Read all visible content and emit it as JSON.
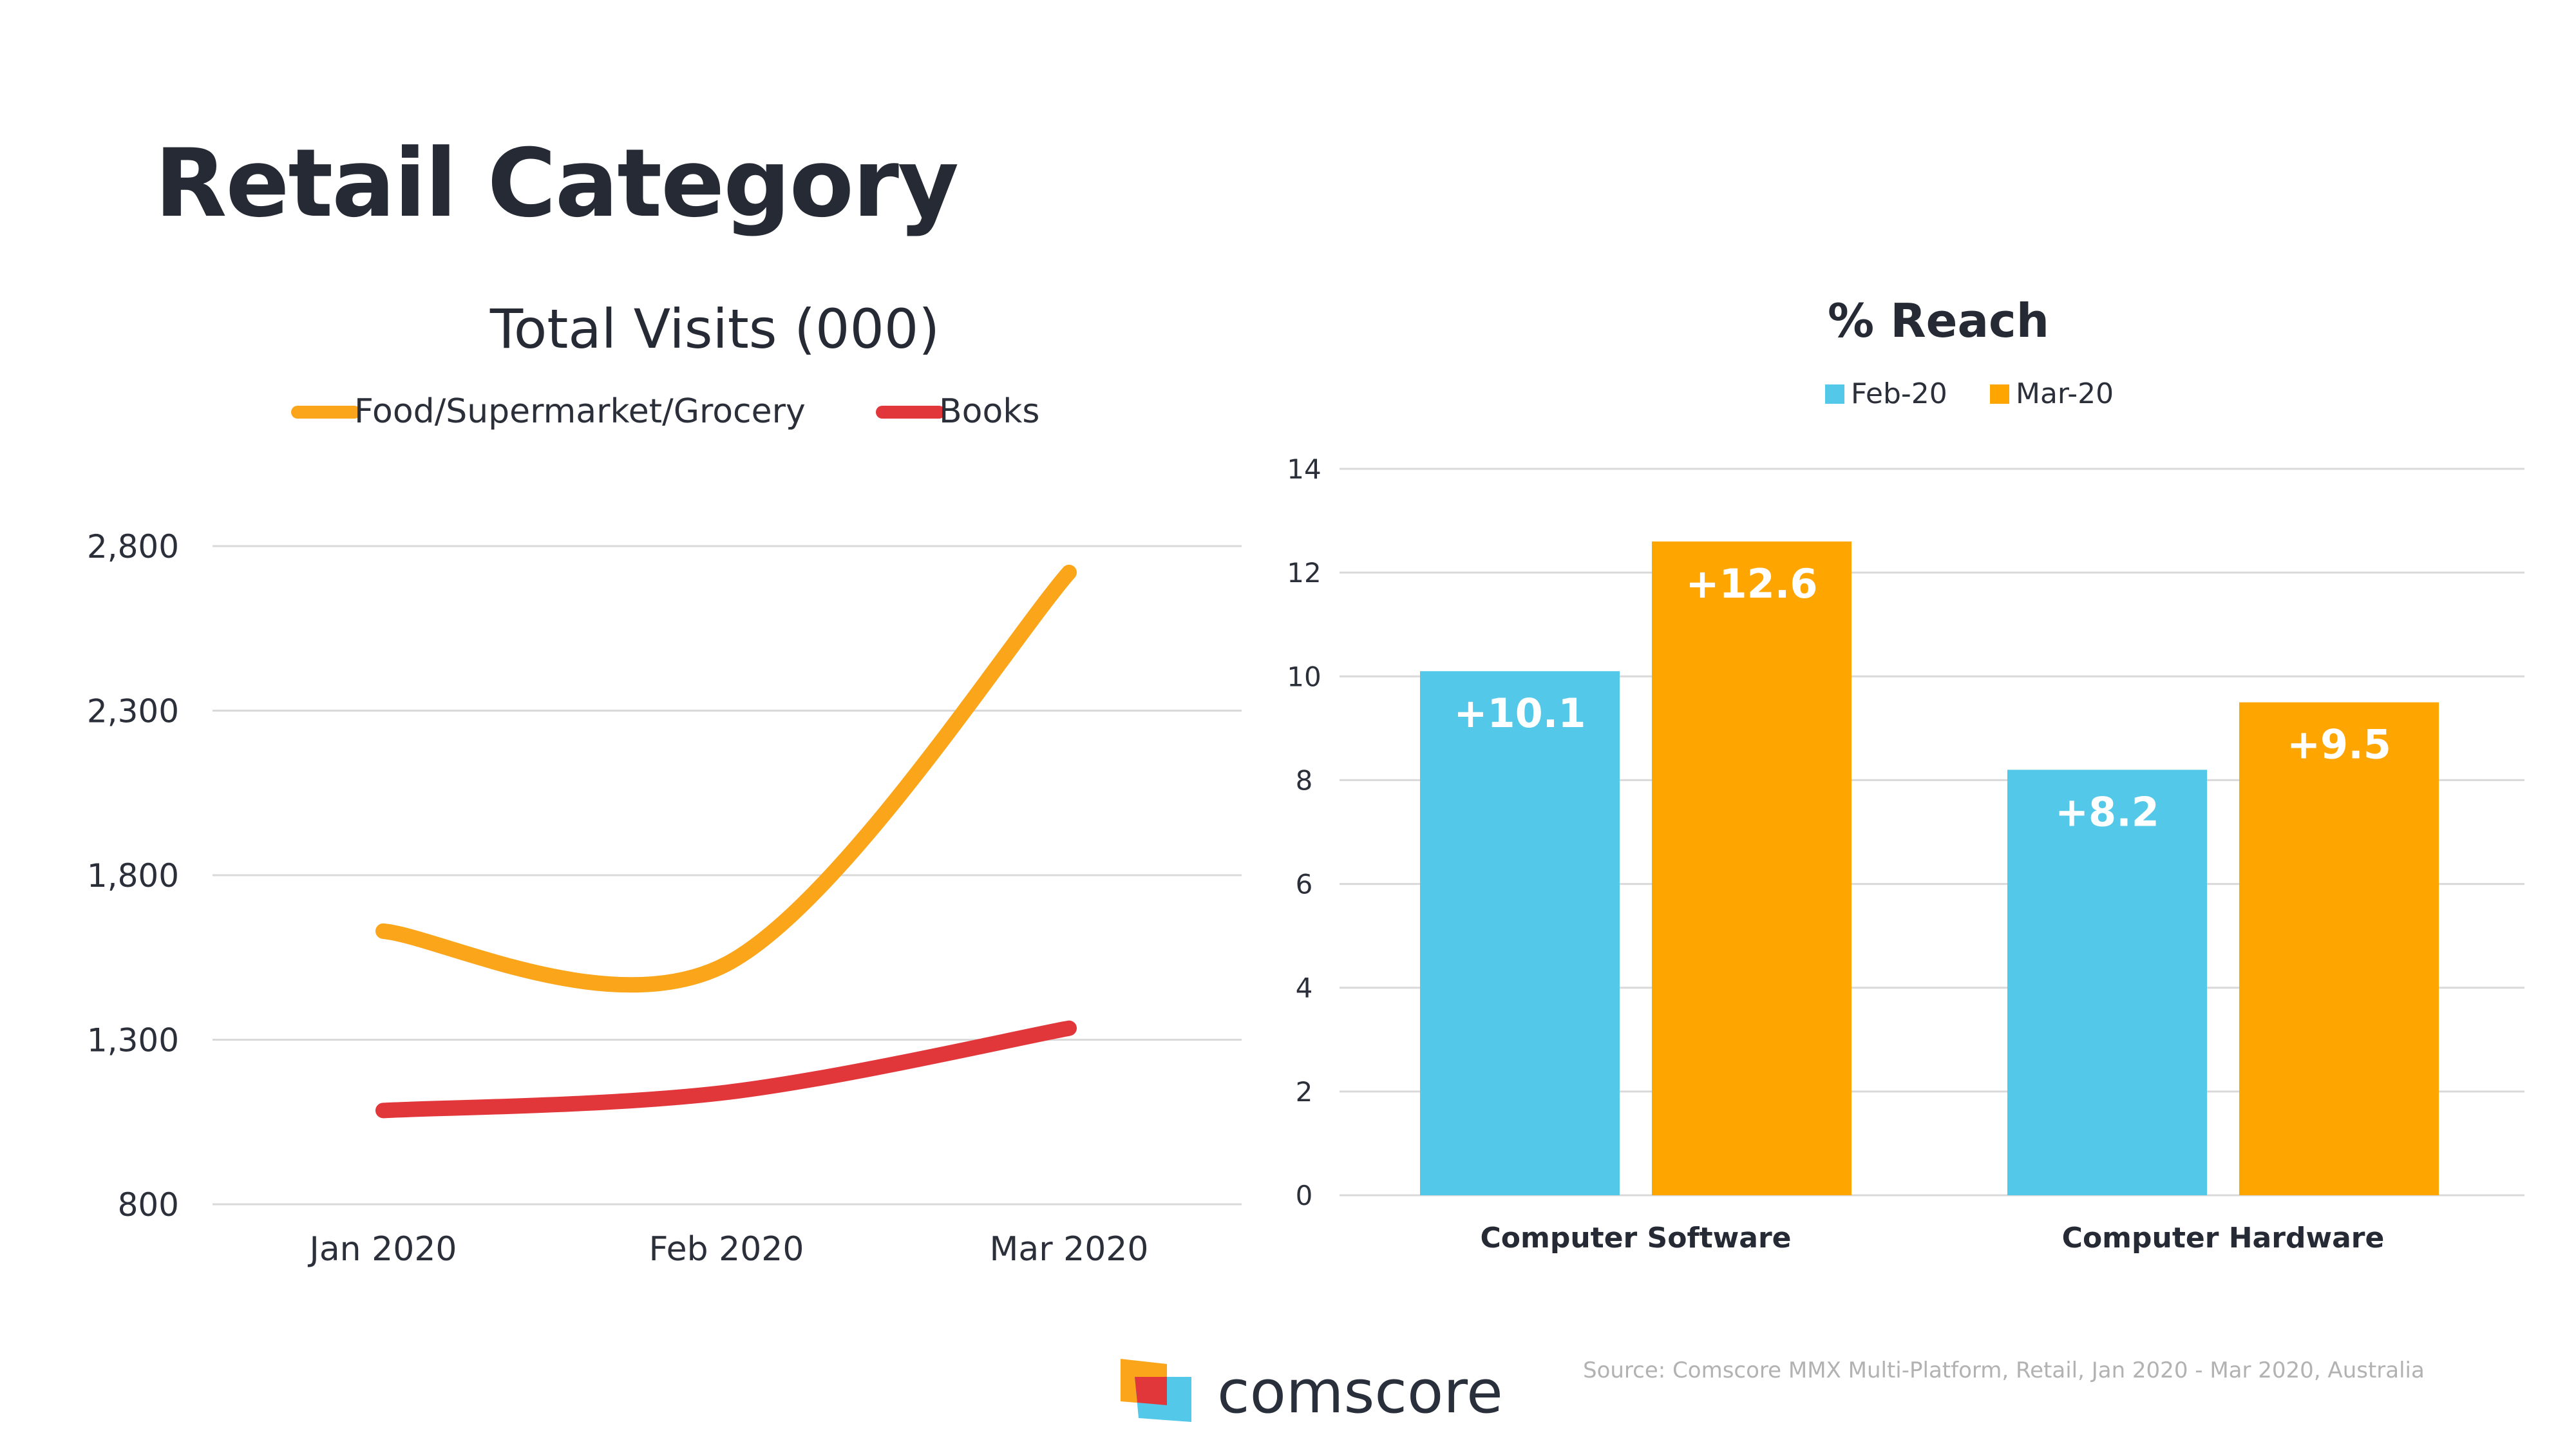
{
  "page": {
    "title": "Retail Category"
  },
  "colors": {
    "orange": "#FBA51A",
    "red": "#E2373A",
    "blue": "#54C8E8",
    "bar_orange": "#FFA500",
    "text": "#262a35",
    "grid": "#d9d9d9"
  },
  "chart_data": [
    {
      "type": "line",
      "title": "Total Visits (000)",
      "categories": [
        "Jan 2020",
        "Feb 2020",
        "Mar 2020"
      ],
      "series": [
        {
          "name": "Food/Supermarket/Grocery",
          "values": [
            1630,
            1530,
            2720
          ]
        },
        {
          "name": "Books",
          "values": [
            1085,
            1140,
            1335
          ]
        }
      ],
      "yticks": [
        "2,800",
        "2,300",
        "1,800",
        "1,300",
        "800"
      ],
      "ylim": [
        800,
        2800
      ],
      "grid": true,
      "legend": "top"
    },
    {
      "type": "bar",
      "title": "% Reach",
      "categories": [
        "Computer Software",
        "Computer Hardware"
      ],
      "series": [
        {
          "name": "Feb-20",
          "values": [
            10.1,
            8.2
          ],
          "labels": [
            "+10.1",
            "+8.2"
          ]
        },
        {
          "name": "Mar-20",
          "values": [
            12.6,
            9.5
          ],
          "labels": [
            "+12.6",
            "+9.5"
          ]
        }
      ],
      "yticks": [
        "14",
        "12",
        "10",
        "8",
        "6",
        "4",
        "2",
        "0"
      ],
      "ylim": [
        0,
        14
      ],
      "grid": true,
      "legend": "top"
    }
  ],
  "footer": {
    "brand": "comscore",
    "source": "Source: Comscore MMX Multi-Platform, Retail, Jan 2020 - Mar 2020, Australia"
  }
}
